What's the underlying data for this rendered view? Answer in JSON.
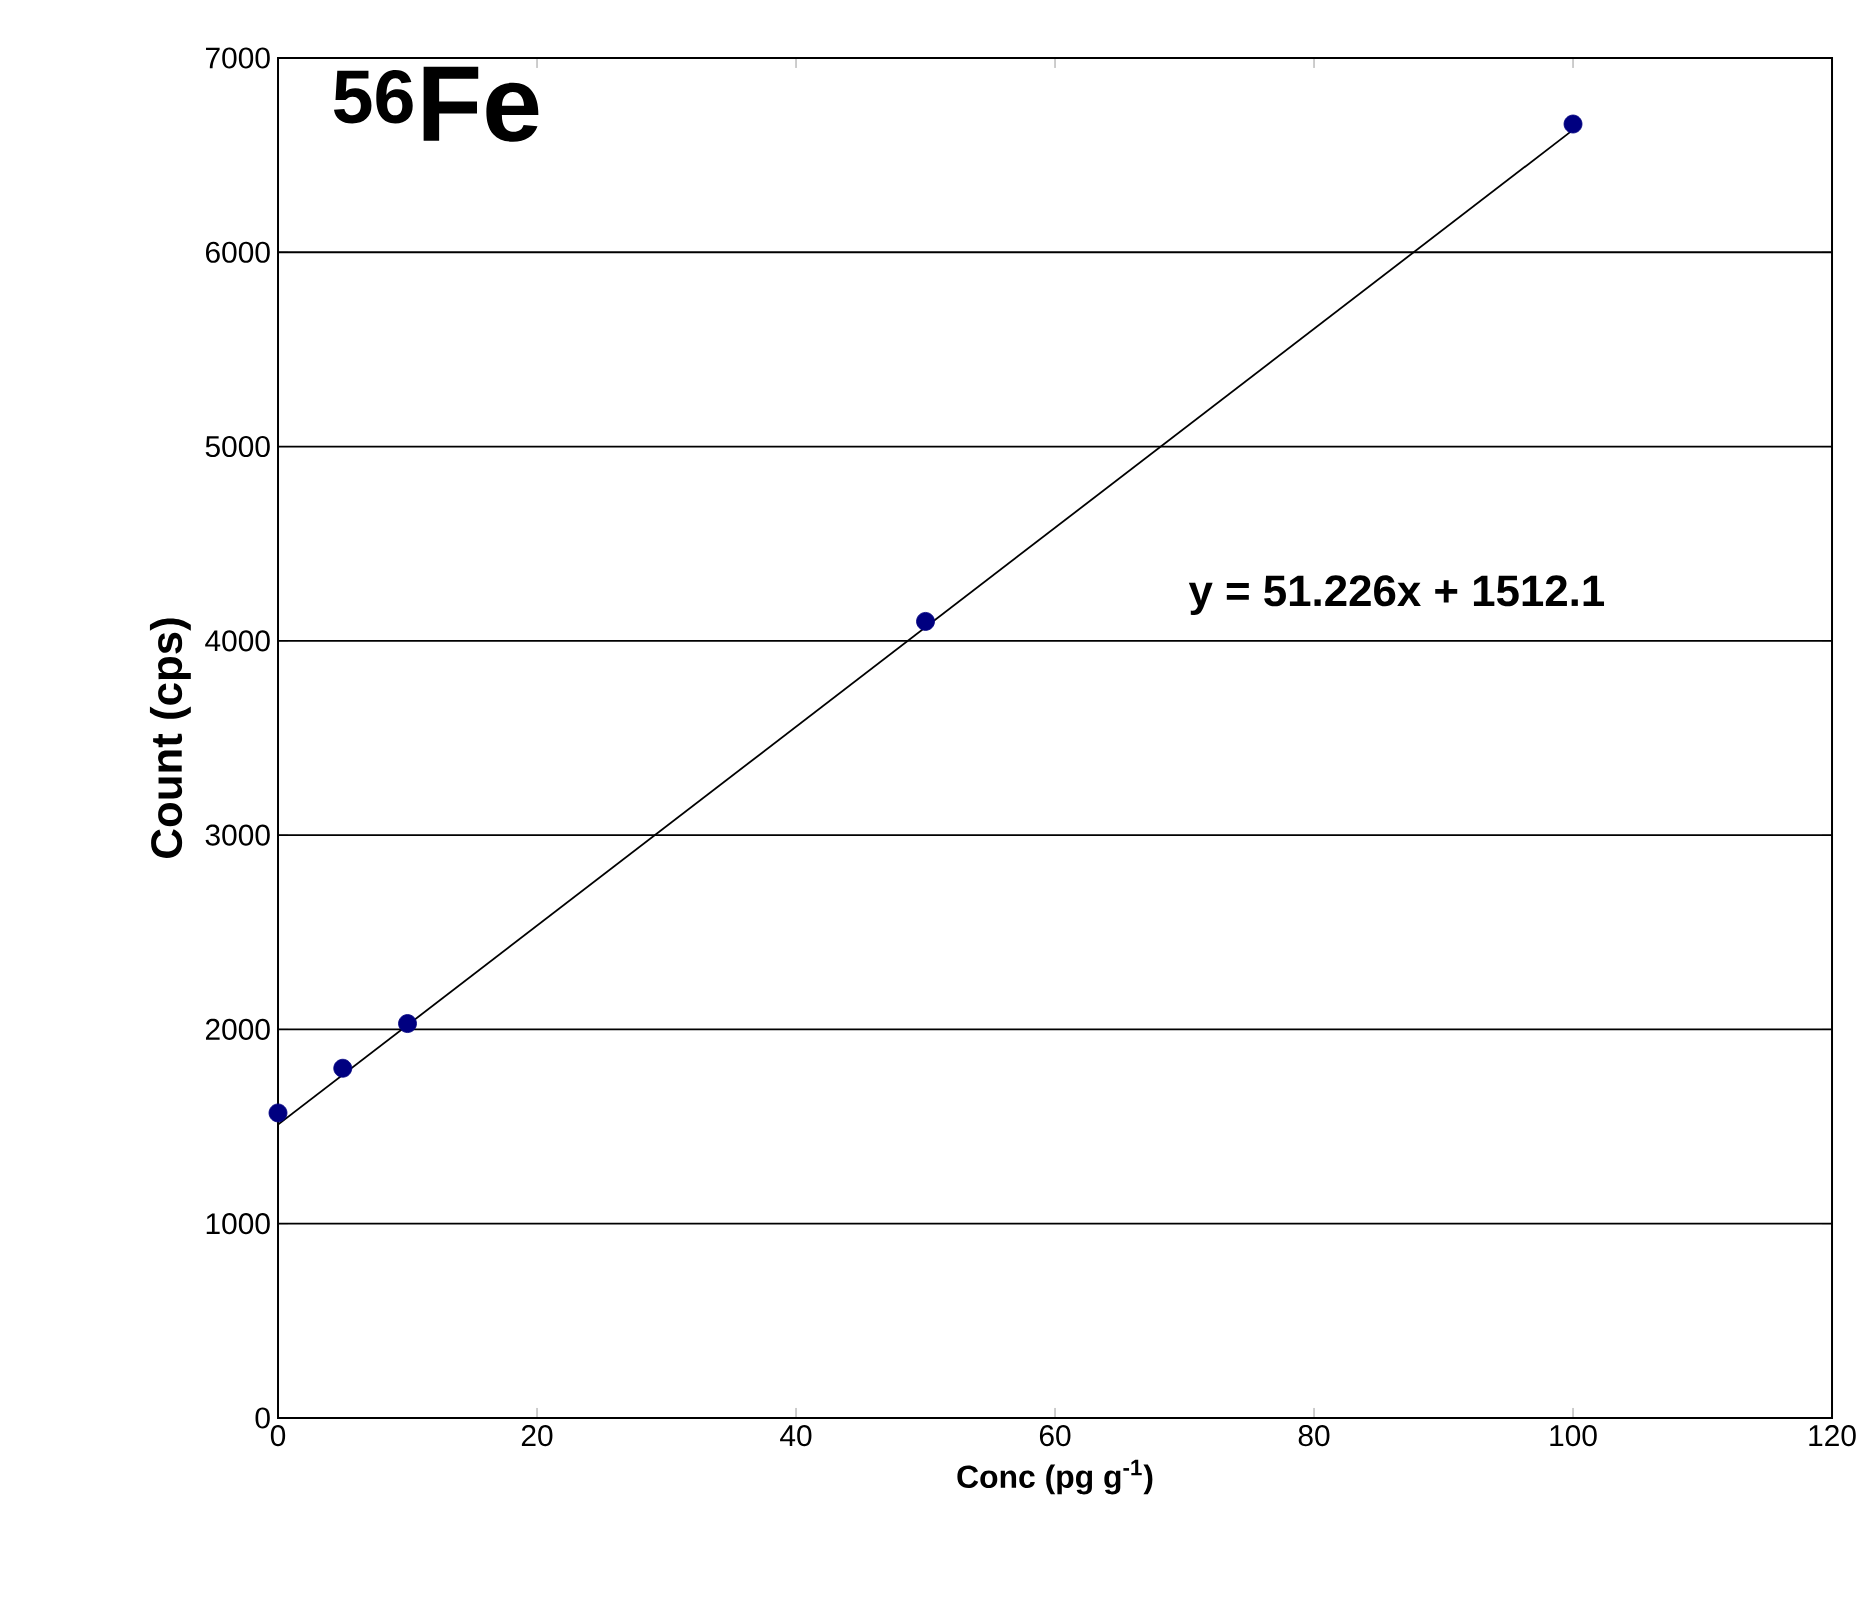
{
  "chart_data": {
    "type": "scatter",
    "title": "$^{56}$Fe",
    "xlabel": "Conc (pg g$^{-1}$)",
    "ylabel": "Count (cps)",
    "annotations": [
      "y = 51.226x + 1512.1"
    ],
    "series": [
      {
        "color": "#000080",
        "marker": "circle",
        "x": [
          0,
          5,
          10,
          50,
          100
        ],
        "values": [
          1570,
          1800,
          2030,
          4100,
          6660
        ]
      },
      {
        "type": "line",
        "color": "#000000",
        "marker": "none",
        "line_style": "solid",
        "x": [
          0,
          100
        ],
        "values": [
          1510,
          6630
        ]
      }
    ],
    "xlim": [
      0,
      120
    ],
    "xticks": [
      0,
      20,
      40,
      60,
      80,
      100,
      120
    ],
    "ylim": [
      0,
      7000
    ],
    "yticks": [
      0,
      1000,
      2000,
      3000,
      4000,
      5000,
      6000,
      7000
    ],
    "grid": "y"
  }
}
